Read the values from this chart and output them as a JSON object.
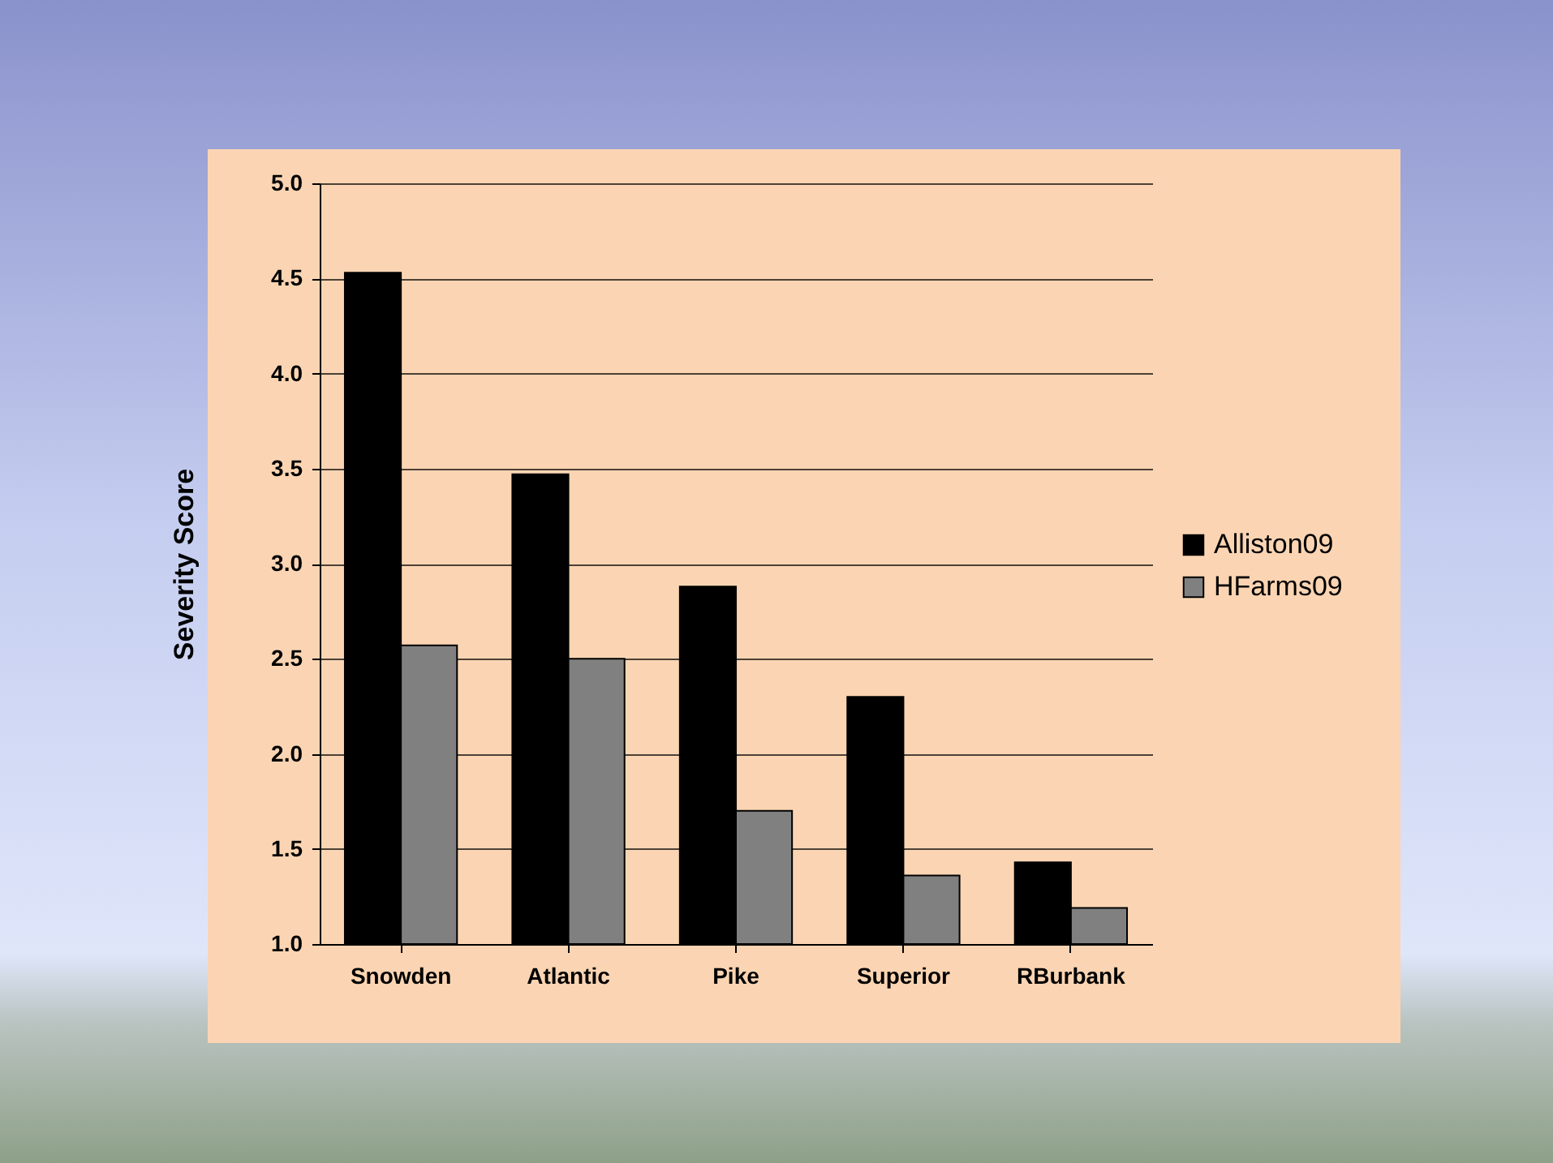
{
  "chart_data": {
    "type": "bar",
    "ylabel": "Severity Score",
    "categories": [
      "Snowden",
      "Atlantic",
      "Pike",
      "Superior",
      "RBurbank"
    ],
    "series": [
      {
        "name": "Alliston09",
        "color": "#000000",
        "values": [
          4.53,
          3.47,
          2.88,
          2.3,
          1.43
        ]
      },
      {
        "name": "HFarms09",
        "color": "#808080",
        "values": [
          2.57,
          2.5,
          1.7,
          1.36,
          1.19
        ]
      }
    ],
    "ylim": [
      1.0,
      5.0
    ],
    "yticks": [
      {
        "value": 1.0,
        "label": "1.0"
      },
      {
        "value": 1.5,
        "label": "1.5"
      },
      {
        "value": 2.0,
        "label": "2.0"
      },
      {
        "value": 2.5,
        "label": "2.5"
      },
      {
        "value": 3.0,
        "label": "3.0"
      },
      {
        "value": 3.5,
        "label": "3.5"
      },
      {
        "value": 4.0,
        "label": "4.0"
      },
      {
        "value": 4.5,
        "label": "4.5"
      },
      {
        "value": 5.0,
        "label": "5.0"
      }
    ],
    "grid": "y",
    "legend": "right"
  }
}
